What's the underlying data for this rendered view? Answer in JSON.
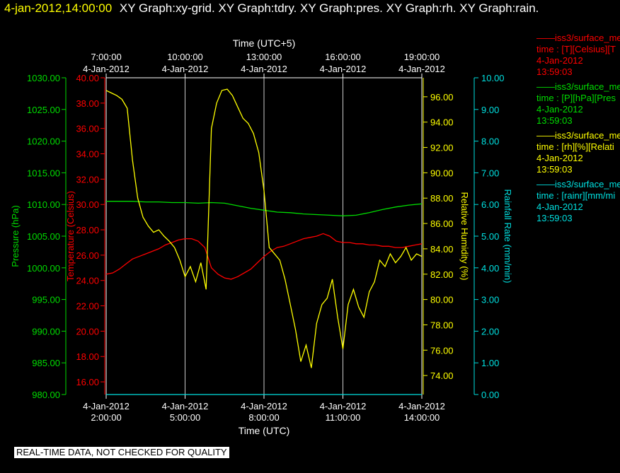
{
  "header": {
    "date_time": "4-jan-2012,14:00:00",
    "graphs": "XY Graph:xy-grid.  XY Graph:tdry.  XY Graph:pres.  XY Graph:rh.  XY Graph:rain."
  },
  "colors": {
    "background": "#000000",
    "header_date": "#ffff00",
    "temperature": "#ff0000",
    "pressure": "#00dd00",
    "humidity": "#ffff00",
    "rain": "#00e0e0",
    "grid": "#ffffff"
  },
  "legend": [
    {
      "name": "——iss3/surface_me",
      "units": "time : [T][Celsius][T",
      "date": "4-Jan-2012",
      "time": "13:59:03",
      "color": "#ff0000"
    },
    {
      "name": "——iss3/surface_me",
      "units": "time : [P][hPa][Pres",
      "date": "4-Jan-2012",
      "time": "13:59:03",
      "color": "#00dd00"
    },
    {
      "name": "——iss3/surface_me",
      "units": "time : [rh][%][Relati",
      "date": "4-Jan-2012",
      "time": "13:59:03",
      "color": "#ffff00"
    },
    {
      "name": "——iss3/surface_me",
      "units": "time : [rainr][mm/mi",
      "date": "4-Jan-2012",
      "time": "13:59:03",
      "color": "#00e0e0"
    }
  ],
  "notice": "REAL-TIME DATA, NOT CHECKED FOR QUALITY",
  "chart_data": {
    "type": "line",
    "grid": true,
    "x_axis_bottom": {
      "label": "Time (UTC)",
      "range_hours": [
        2,
        14
      ],
      "ticks": [
        {
          "value": 2,
          "date": "4-Jan-2012",
          "time": "2:00:00"
        },
        {
          "value": 5,
          "date": "4-Jan-2012",
          "time": "5:00:00"
        },
        {
          "value": 8,
          "date": "4-Jan-2012",
          "time": "8:00:00"
        },
        {
          "value": 11,
          "date": "4-Jan-2012",
          "time": "11:00:00"
        },
        {
          "value": 14,
          "date": "4-Jan-2012",
          "time": "14:00:00"
        }
      ]
    },
    "x_axis_top": {
      "label": "Time (UTC+5)",
      "ticks": [
        {
          "value": 2,
          "date": "4-Jan-2012",
          "time": "7:00:00"
        },
        {
          "value": 5,
          "date": "4-Jan-2012",
          "time": "10:00:00"
        },
        {
          "value": 8,
          "date": "4-Jan-2012",
          "time": "13:00:00"
        },
        {
          "value": 11,
          "date": "4-Jan-2012",
          "time": "16:00:00"
        },
        {
          "value": 14,
          "date": "4-Jan-2012",
          "time": "19:00:00"
        }
      ]
    },
    "y_axes": [
      {
        "id": "pressure",
        "label": "Pressure (hPa)",
        "range": [
          980,
          1030
        ],
        "step": 5,
        "decimals": 2,
        "color": "#00dd00",
        "side": "left"
      },
      {
        "id": "temperature",
        "label": "Temperature (Celsius)",
        "range": [
          15,
          40
        ],
        "ticks": [
          16,
          18,
          20,
          22,
          24,
          26,
          28,
          30,
          32,
          34,
          36,
          38,
          40
        ],
        "decimals": 2,
        "color": "#ff0000",
        "side": "left"
      },
      {
        "id": "humidity",
        "label": "Relative Humidity (%)",
        "range": [
          72.5,
          97.5
        ],
        "ticks": [
          74,
          76,
          78,
          80,
          82,
          84,
          86,
          88,
          90,
          92,
          94,
          96
        ],
        "decimals": 2,
        "color": "#ffff00",
        "side": "right"
      },
      {
        "id": "rain",
        "label": "Rainfall Rate (mm/min)",
        "range": [
          0,
          10
        ],
        "step": 1,
        "decimals": 2,
        "color": "#00e0e0",
        "side": "right"
      }
    ],
    "series": [
      {
        "name": "iss3/surface_me",
        "axis": "temperature",
        "color": "#ff0000",
        "x": [
          2,
          2.25,
          2.5,
          2.75,
          3,
          3.25,
          3.5,
          3.75,
          4,
          4.25,
          4.5,
          4.75,
          5,
          5.25,
          5.5,
          5.75,
          6,
          6.25,
          6.5,
          6.75,
          7,
          7.25,
          7.5,
          7.75,
          8,
          8.25,
          8.5,
          8.75,
          9,
          9.25,
          9.5,
          9.75,
          10,
          10.25,
          10.5,
          10.75,
          11,
          11.25,
          11.5,
          11.75,
          12,
          12.25,
          12.5,
          12.75,
          13,
          13.25,
          13.5,
          13.75,
          14
        ],
        "y": [
          24.5,
          24.6,
          24.9,
          25.3,
          25.7,
          25.9,
          26.1,
          26.3,
          26.5,
          26.8,
          27,
          27.2,
          27.3,
          27.3,
          27.1,
          26.6,
          25,
          24.5,
          24.2,
          24.1,
          24.3,
          24.6,
          24.9,
          25.4,
          25.9,
          26.3,
          26.6,
          26.7,
          26.9,
          27.1,
          27.3,
          27.4,
          27.5,
          27.7,
          27.5,
          27.1,
          27,
          27,
          26.9,
          26.9,
          26.8,
          26.8,
          26.7,
          26.7,
          26.6,
          26.6,
          26.7,
          26.8,
          26.9
        ]
      },
      {
        "name": "iss3/surface_me",
        "axis": "pressure",
        "color": "#00dd00",
        "x": [
          2,
          2.5,
          3,
          3.5,
          4,
          4.5,
          5,
          5.5,
          6,
          6.5,
          7,
          7.5,
          8,
          8.5,
          9,
          9.5,
          10,
          10.5,
          11,
          11.5,
          12,
          12.5,
          13,
          13.5,
          14
        ],
        "y": [
          1010.5,
          1010.5,
          1010.5,
          1010.4,
          1010.4,
          1010.3,
          1010.3,
          1010.2,
          1010.3,
          1010.2,
          1009.8,
          1009.4,
          1009.1,
          1008.8,
          1008.7,
          1008.5,
          1008.4,
          1008.3,
          1008.2,
          1008.3,
          1008.7,
          1009.2,
          1009.6,
          1009.9,
          1010.1
        ]
      },
      {
        "name": "iss3/surface_me",
        "axis": "humidity",
        "color": "#ffff00",
        "x": [
          2,
          2.2,
          2.4,
          2.6,
          2.8,
          3,
          3.2,
          3.4,
          3.6,
          3.8,
          4,
          4.2,
          4.4,
          4.6,
          4.8,
          5,
          5.2,
          5.4,
          5.6,
          5.8,
          6,
          6.2,
          6.4,
          6.6,
          6.8,
          7,
          7.2,
          7.4,
          7.6,
          7.8,
          8,
          8.2,
          8.4,
          8.6,
          8.8,
          9,
          9.2,
          9.4,
          9.6,
          9.8,
          10,
          10.2,
          10.4,
          10.6,
          10.8,
          11,
          11.2,
          11.4,
          11.6,
          11.8,
          12,
          12.2,
          12.4,
          12.6,
          12.8,
          13,
          13.2,
          13.4,
          13.6,
          13.8,
          14
        ],
        "y": [
          96.5,
          96.3,
          96.1,
          95.8,
          95.1,
          91,
          88,
          86.5,
          85.8,
          85.3,
          85.5,
          85,
          84.6,
          84.1,
          83.1,
          81.8,
          82.6,
          81.4,
          82.9,
          80.8,
          93.5,
          95.5,
          96.5,
          96.6,
          96.1,
          95.2,
          94.3,
          93.9,
          93.1,
          91.6,
          88.6,
          84.1,
          83.6,
          83.1,
          81.6,
          79.6,
          77.6,
          75.1,
          76.4,
          74.6,
          78.1,
          79.6,
          80.1,
          81.6,
          78.6,
          76.1,
          79.6,
          80.8,
          79.4,
          78.6,
          80.6,
          81.4,
          83.1,
          82.6,
          83.6,
          82.9,
          83.4,
          84.1,
          83.1,
          83.6,
          83.4
        ]
      },
      {
        "name": "iss3/surface_me",
        "axis": "rain",
        "color": "#00e0e0",
        "x": [
          2,
          14
        ],
        "y": [
          0,
          0
        ]
      }
    ]
  }
}
